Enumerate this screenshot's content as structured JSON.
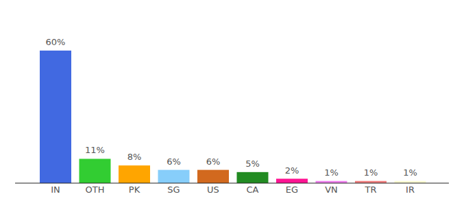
{
  "chart_data": {
    "type": "bar",
    "categories": [
      "IN",
      "OTH",
      "PK",
      "SG",
      "US",
      "CA",
      "EG",
      "VN",
      "TR",
      "IR"
    ],
    "values": [
      60,
      11,
      8,
      6,
      6,
      5,
      2,
      1,
      1,
      1
    ],
    "value_labels": [
      "60%",
      "11%",
      "8%",
      "6%",
      "6%",
      "5%",
      "2%",
      "1%",
      "1%",
      "1%"
    ],
    "colors": [
      "#4169e1",
      "#32cd32",
      "#ffa500",
      "#87cefa",
      "#d2691e",
      "#228b22",
      "#ff1493",
      "#ee82ee",
      "#f08080",
      "#fafad2"
    ],
    "ylim": [
      0,
      60
    ],
    "data_labels": true,
    "tick_labels": "x"
  }
}
